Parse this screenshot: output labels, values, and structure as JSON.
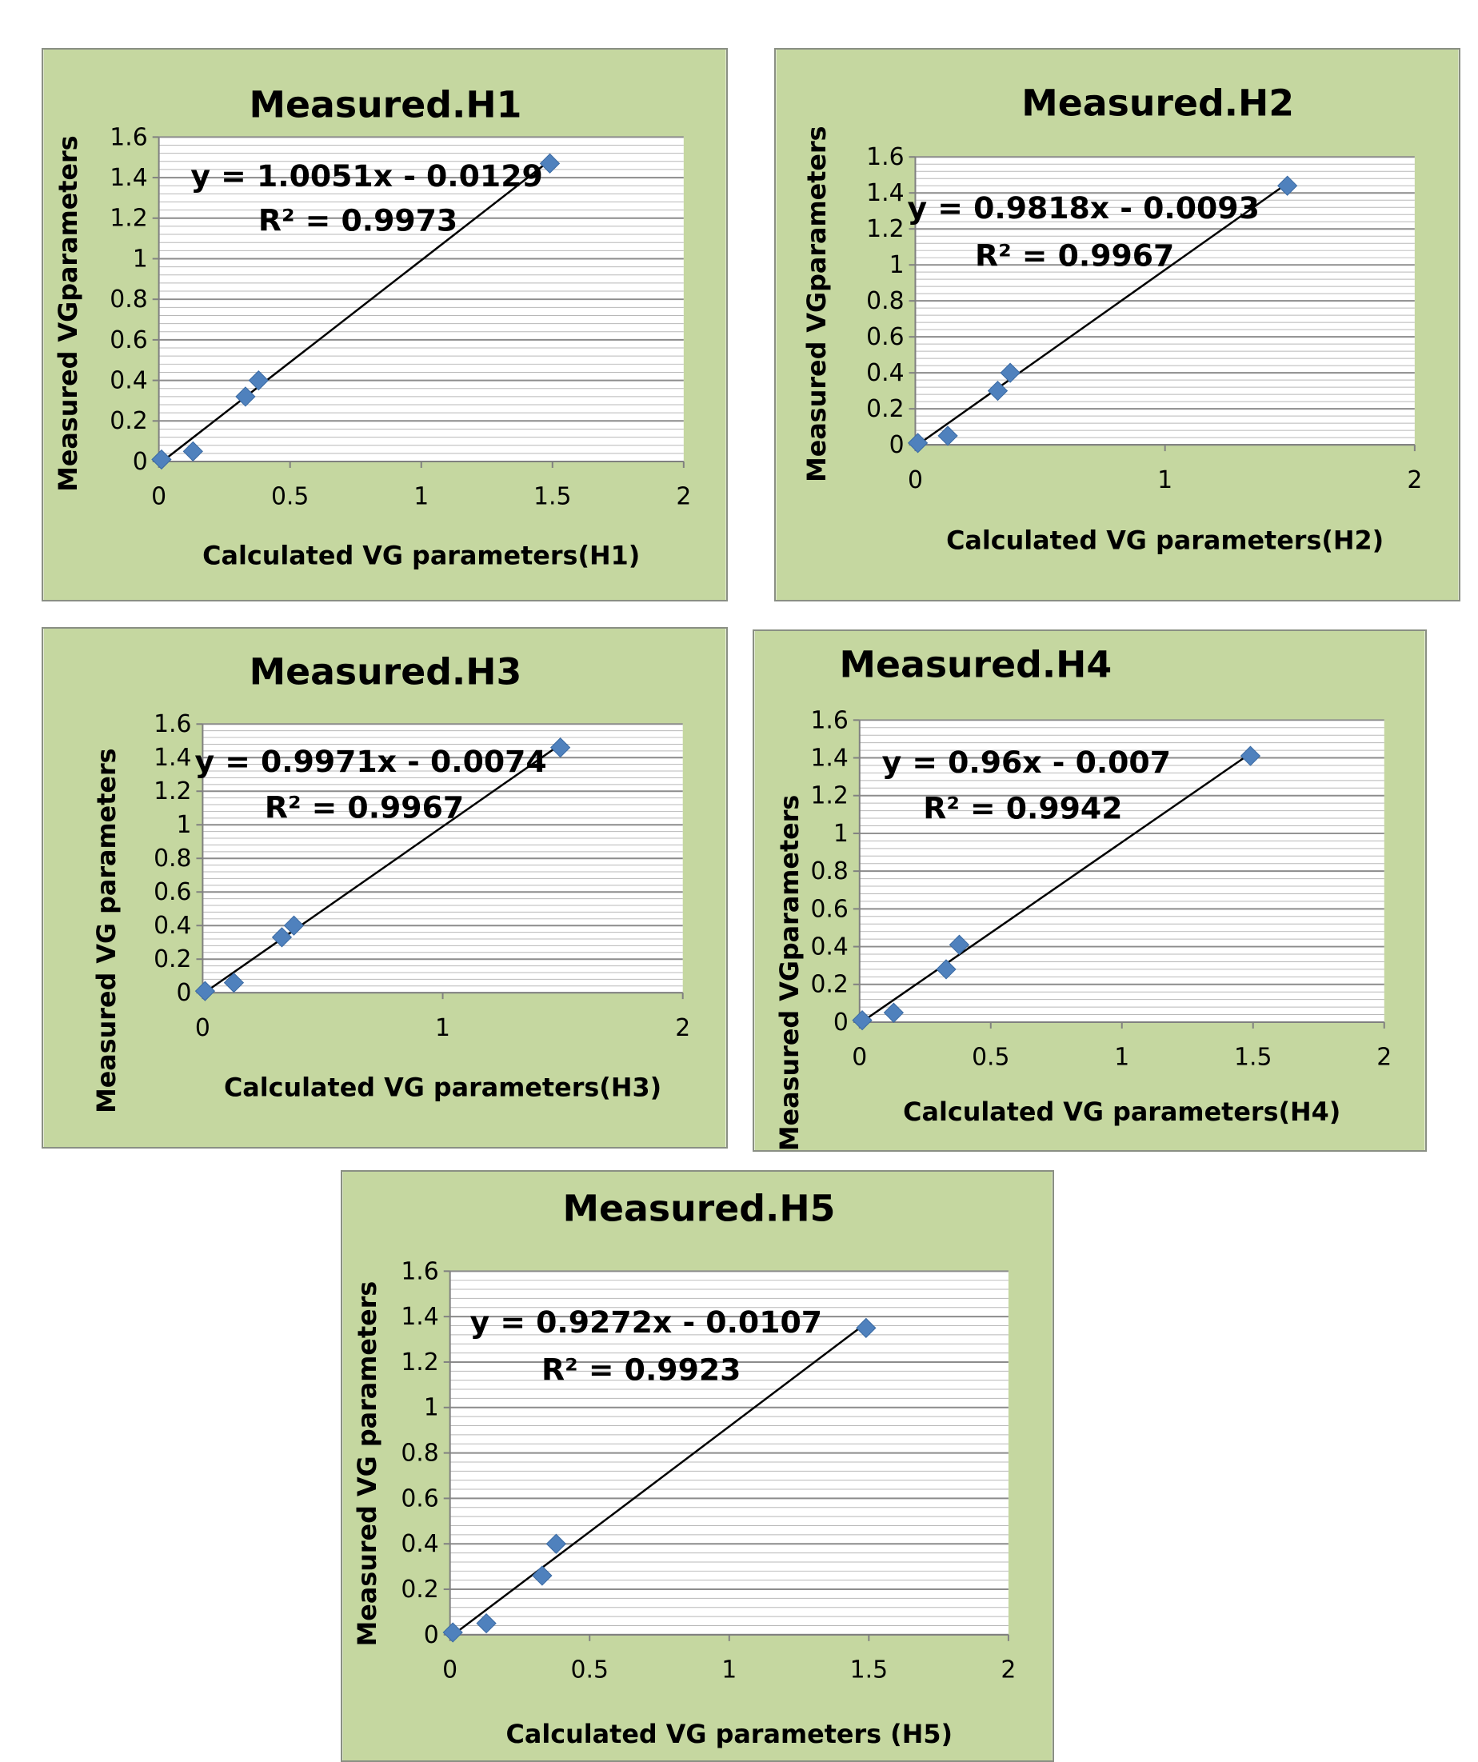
{
  "colors": {
    "panel_bg": "#c5d7a0",
    "plot_bg": "#ffffff",
    "gridline": "#a0a0a0",
    "marker": "#4f81bd",
    "trendline": "#000000"
  },
  "chart_data": [
    {
      "type": "scatter",
      "title": "Measured.H1",
      "xlabel": "Calculated VG parameters(H1)",
      "ylabel": "Measured VGparameters",
      "xlim": [
        0,
        2
      ],
      "ylim": [
        0,
        1.6
      ],
      "xticks": [
        "0",
        "0.5",
        "1",
        "1.5",
        "2"
      ],
      "yticks": [
        "0",
        "0.2",
        "0.4",
        "0.6",
        "0.8",
        "1",
        "1.2",
        "1.4",
        "1.6"
      ],
      "grid": true,
      "series": [
        {
          "x": [
            0.01,
            0.13,
            0.33,
            0.38,
            1.49
          ],
          "y": [
            0.01,
            0.05,
            0.32,
            0.4,
            1.47
          ]
        }
      ],
      "trendline": {
        "slope": 1.0051,
        "intercept": -0.0129
      },
      "equation": "y = 1.0051x - 0.0129",
      "r2": "R² = 0.9973"
    },
    {
      "type": "scatter",
      "title": "Measured.H2",
      "xlabel": "Calculated VG parameters(H2)",
      "ylabel": "Measured VGparameters",
      "xlim": [
        0,
        2
      ],
      "ylim": [
        0,
        1.6
      ],
      "xticks": [
        "0",
        "1",
        "2"
      ],
      "yticks": [
        "0",
        "0.2",
        "0.4",
        "0.6",
        "0.8",
        "1",
        "1.2",
        "1.4",
        "1.6"
      ],
      "grid": true,
      "series": [
        {
          "x": [
            0.01,
            0.13,
            0.33,
            0.38,
            1.49
          ],
          "y": [
            0.01,
            0.05,
            0.3,
            0.4,
            1.44
          ]
        }
      ],
      "trendline": {
        "slope": 0.9818,
        "intercept": -0.0093
      },
      "equation": "y = 0.9818x - 0.0093",
      "r2": "R² = 0.9967"
    },
    {
      "type": "scatter",
      "title": "Measured.H3",
      "xlabel": "Calculated VG parameters(H3)",
      "ylabel": "Measured VG parameters",
      "xlim": [
        0,
        2
      ],
      "ylim": [
        0,
        1.6
      ],
      "xticks": [
        "0",
        "1",
        "2"
      ],
      "yticks": [
        "0",
        "0.2",
        "0.4",
        "0.6",
        "0.8",
        "1",
        "1.2",
        "1.4",
        "1.6"
      ],
      "grid": true,
      "series": [
        {
          "x": [
            0.01,
            0.13,
            0.33,
            0.38,
            1.49
          ],
          "y": [
            0.01,
            0.06,
            0.33,
            0.4,
            1.46
          ]
        }
      ],
      "trendline": {
        "slope": 0.9971,
        "intercept": -0.0074
      },
      "equation": "y = 0.9971x - 0.0074",
      "r2": "R² = 0.9967"
    },
    {
      "type": "scatter",
      "title": "Measured.H4",
      "xlabel": "Calculated VG parameters(H4)",
      "ylabel": "Measured VGparameters",
      "xlim": [
        0,
        2
      ],
      "ylim": [
        0,
        1.6
      ],
      "xticks": [
        "0",
        "0.5",
        "1",
        "1.5",
        "2"
      ],
      "yticks": [
        "0",
        "0.2",
        "0.4",
        "0.6",
        "0.8",
        "1",
        "1.2",
        "1.4",
        "1.6"
      ],
      "grid": true,
      "series": [
        {
          "x": [
            0.01,
            0.13,
            0.33,
            0.38,
            1.49
          ],
          "y": [
            0.01,
            0.05,
            0.28,
            0.41,
            1.41
          ]
        }
      ],
      "trendline": {
        "slope": 0.96,
        "intercept": -0.007
      },
      "equation": "y = 0.96x - 0.007",
      "r2": "R² = 0.9942"
    },
    {
      "type": "scatter",
      "title": "Measured.H5",
      "xlabel": "Calculated VG parameters (H5)",
      "ylabel": "Measured VG parameters",
      "xlim": [
        0,
        2
      ],
      "ylim": [
        0,
        1.6
      ],
      "xticks": [
        "0",
        "0.5",
        "1",
        "1.5",
        "2"
      ],
      "yticks": [
        "0",
        "0.2",
        "0.4",
        "0.6",
        "0.8",
        "1",
        "1.2",
        "1.4",
        "1.6"
      ],
      "grid": true,
      "series": [
        {
          "x": [
            0.01,
            0.13,
            0.33,
            0.38,
            1.49
          ],
          "y": [
            0.01,
            0.05,
            0.26,
            0.4,
            1.35
          ]
        }
      ],
      "trendline": {
        "slope": 0.9272,
        "intercept": -0.0107
      },
      "equation": "y = 0.9272x - 0.0107",
      "r2": "R² = 0.9923"
    }
  ]
}
